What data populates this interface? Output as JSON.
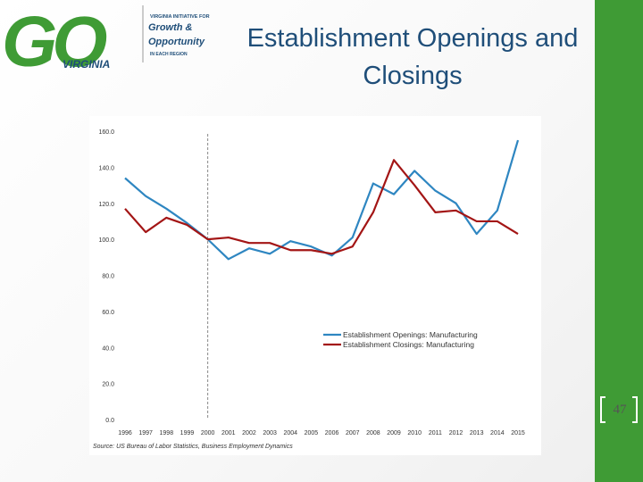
{
  "header": {
    "title": "Establishment Openings and Closings",
    "logo": {
      "mark": "GO",
      "state": "VIRGINIA",
      "tagline_top": "VIRGINIA INITIATIVE FOR",
      "tagline_1": "Growth &",
      "tagline_2": "Opportunity",
      "tagline_bottom": "IN EACH REGION"
    }
  },
  "slide": {
    "page_number": "47"
  },
  "colors": {
    "accent_green": "#3f9b35",
    "title_blue": "#1f4e79",
    "series_blue": "#2e86c1",
    "series_red": "#a31515"
  },
  "chart_data": {
    "type": "line",
    "x": [
      "1996",
      "1997",
      "1998",
      "1999",
      "2000",
      "2001",
      "2002",
      "2003",
      "2004",
      "2005",
      "2006",
      "2007",
      "2008",
      "2009",
      "2010",
      "2011",
      "2012",
      "2013",
      "2014",
      "2015"
    ],
    "series": [
      {
        "name": "Establishment Openings: Manufacturing",
        "values": [
          134,
          124,
          117,
          109,
          100,
          89,
          95,
          92,
          99,
          96,
          91,
          101,
          131,
          125,
          138,
          127,
          120,
          103,
          116,
          155
        ]
      },
      {
        "name": "Establishment Closings: Manufacturing",
        "values": [
          117,
          104,
          112,
          108,
          100,
          101,
          98,
          98,
          94,
          94,
          92,
          96,
          115,
          144,
          130,
          115,
          116,
          110,
          110,
          103
        ]
      }
    ],
    "ylim": [
      0,
      160
    ],
    "yticks": [
      "0.0",
      "20.0",
      "40.0",
      "60.0",
      "80.0",
      "100.0",
      "120.0",
      "140.0",
      "160.0"
    ],
    "ylabel": "",
    "xlabel": "",
    "reference_line_x": "2000",
    "legend_position": "lower-right",
    "source": "Source: US Bureau of Labor Statistics, Business Employment Dynamics"
  }
}
